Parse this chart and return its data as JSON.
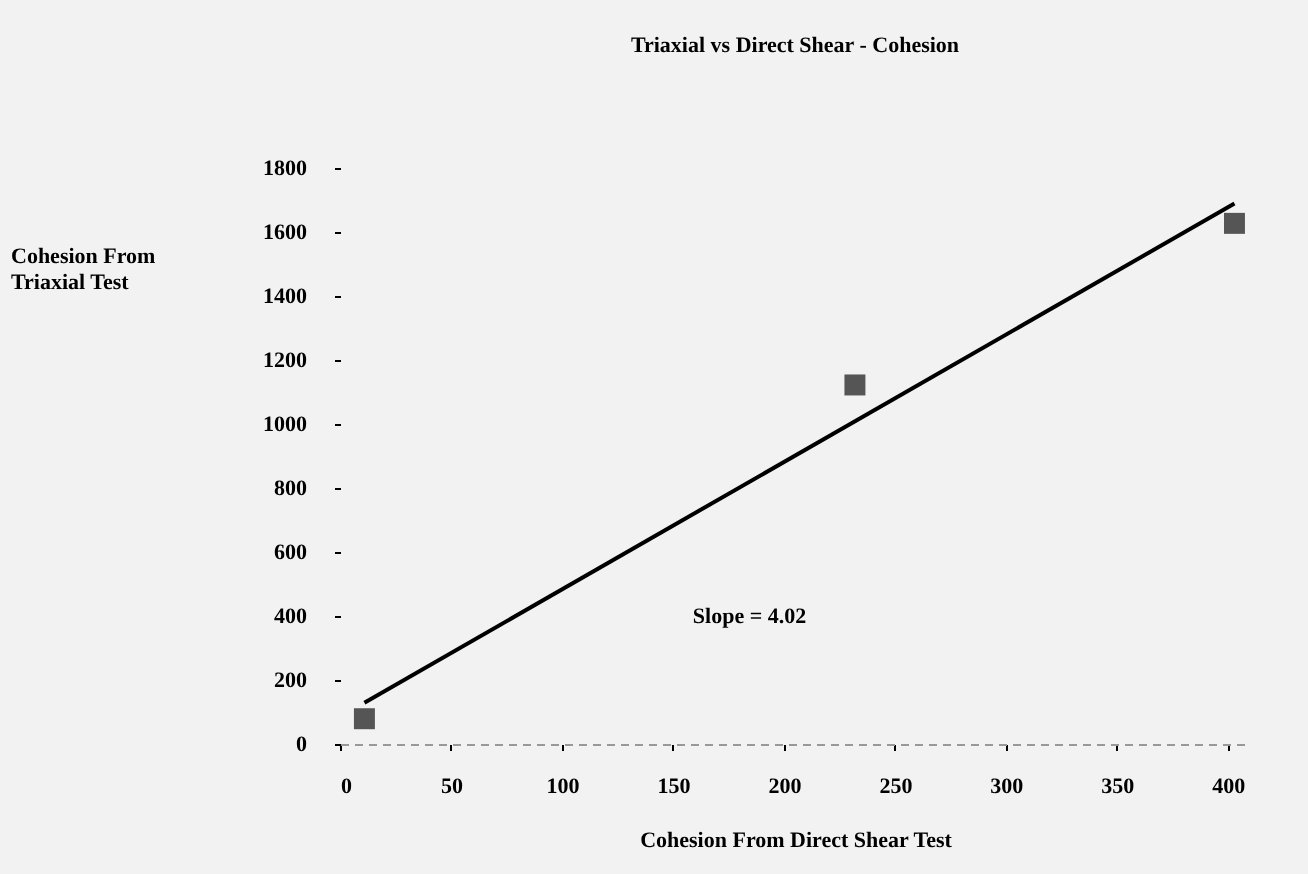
{
  "chart_data": {
    "type": "scatter",
    "title": "Triaxial vs Direct Shear - Cohesion",
    "xlabel": "Cohesion From Direct Shear Test",
    "ylabel": "Cohesion From Triaxial Test",
    "x": [
      11,
      232,
      403
    ],
    "series": [
      {
        "color": "#555555",
        "values": [
          79,
          1122,
          1627
        ]
      },
      {
        "type": "line",
        "marker": "none",
        "color": "#000000",
        "x": [
          11,
          403
        ],
        "values": [
          129,
          1689
        ]
      }
    ],
    "marker": "square",
    "xlim": [
      0,
      410
    ],
    "ylim": [
      0,
      1800
    ],
    "xticks": [
      0,
      50,
      100,
      150,
      200,
      250,
      300,
      350,
      400
    ],
    "yticks": [
      0,
      200,
      400,
      600,
      800,
      1000,
      1200,
      1400,
      1600,
      1800
    ],
    "grid": false,
    "annotations": [
      "Slope = 4.02"
    ]
  }
}
